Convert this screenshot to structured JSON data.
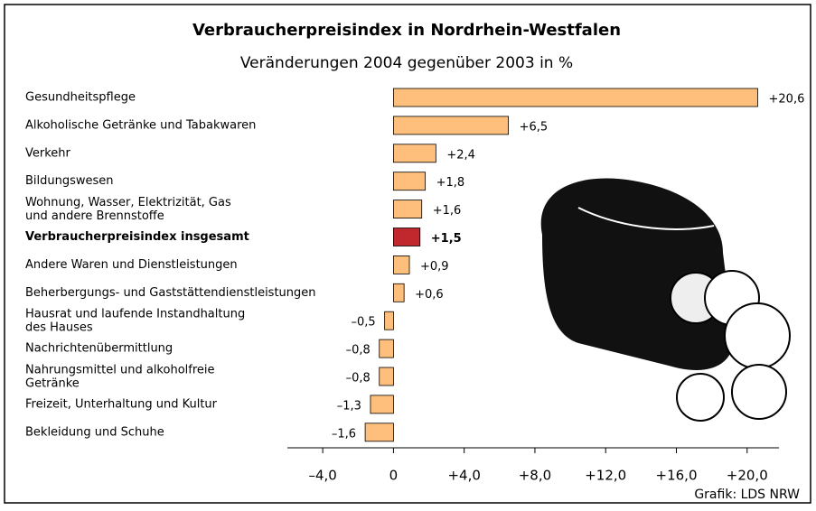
{
  "chart_data": {
    "type": "hbar",
    "title": "Verbraucherpreisindex in Nordrhein-Westfalen",
    "subtitle": "Veränderungen 2004 gegenüber 2003 in %",
    "source": "Grafik: LDS NRW",
    "categories": [
      "Gesundheitspflege",
      "Alkoholische Getränke und Tabakwaren",
      "Verkehr",
      "Bildungswesen",
      "Wohnung, Wasser, Elektrizität, Gas\nund andere Brennstoffe",
      "Verbraucherpreisindex insgesamt",
      "Andere Waren und Dienstleistungen",
      "Beherbergungs- und Gaststättendienstleistungen",
      "Hausrat und laufende Instandhaltung\ndes Hauses",
      "Nachrichtenübermittlung",
      "Nahrungsmittel und alkoholfreie\nGetränke",
      "Freizeit, Unterhaltung und Kultur",
      "Bekleidung und Schuhe"
    ],
    "values": [
      20.6,
      6.5,
      2.4,
      1.8,
      1.6,
      1.5,
      0.9,
      0.6,
      -0.5,
      -0.8,
      -0.8,
      -1.3,
      -1.6
    ],
    "value_labels": [
      "+20,6",
      "+6,5",
      "+2,4",
      "+1,8",
      "+1,6",
      "+1,5",
      "+0,9",
      "+0,6",
      "–0,5",
      "–0,8",
      "–0,8",
      "–1,3",
      "–1,6"
    ],
    "color": "#fdbf7b",
    "highlight": {
      "index": 5,
      "color": "#c0282d"
    },
    "xlim": [
      -6,
      21.8
    ],
    "xticks": [
      {
        "value": -4,
        "label": "–4,0"
      },
      0,
      {
        "value": 4,
        "label": "+4,0"
      },
      {
        "value": 8,
        "label": "+8,0"
      },
      {
        "value": 12,
        "label": "+12,0"
      },
      {
        "value": 16,
        "label": "+16,0"
      },
      {
        "value": 20,
        "label": "+20,0"
      }
    ]
  }
}
